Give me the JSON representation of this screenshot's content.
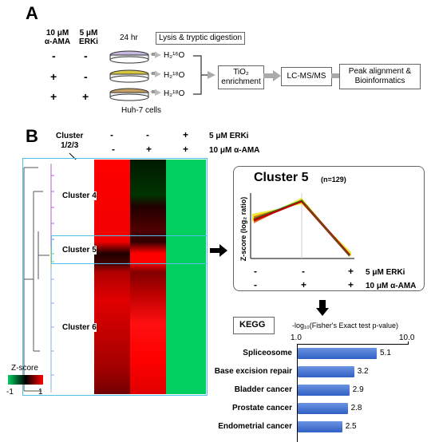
{
  "panel_a": {
    "letter": "A",
    "col1_header": [
      "10 μM",
      "α-AMA"
    ],
    "col2_header": [
      "5 μM",
      "ERKi"
    ],
    "rows": [
      {
        "ama": "-",
        "erki": "-",
        "water": "H₂¹⁶O"
      },
      {
        "ama": "+",
        "erki": "-",
        "water": "H₂¹⁸O"
      },
      {
        "ama": "+",
        "erki": "+",
        "water": "H₂¹⁸O"
      }
    ],
    "time_label": "24 hr",
    "cells_label": "Huh-7 cells",
    "lysis_label": "Lysis & tryptic digestion",
    "tio2_label": [
      "TiO₂",
      "enrichment"
    ],
    "lcms_label": "LC-MS/MS",
    "peak_label": [
      "Peak alignment &",
      "Bioinformatics"
    ]
  },
  "panel_b": {
    "letter": "B",
    "cluster_header": [
      "Cluster",
      "1/2/3"
    ],
    "erki_signs": [
      "-",
      "-",
      "+"
    ],
    "ama_signs": [
      "-",
      "+",
      "+"
    ],
    "erki_label": "5 μM ERKi",
    "ama_label": "10 μM α-AMA",
    "clusters": [
      "Cluster 4",
      "Cluster 5",
      "Cluster 6"
    ],
    "zscore_title": "Z-score",
    "zscore_min": "-1",
    "zscore_max": "1",
    "colors": {
      "green": "#00d060",
      "red": "#ff0000",
      "black": "#000000"
    }
  },
  "cluster5_panel": {
    "title": "Cluster 5",
    "n_label": "(n=129)",
    "ylabel": "Z-score (log₂ ratio)",
    "erki_signs": [
      "-",
      "-",
      "+"
    ],
    "ama_signs": [
      "-",
      "+",
      "+"
    ],
    "erki_label": "5 μM ERKi",
    "ama_label": "10 μM α-AMA"
  },
  "kegg": {
    "title": "KEGG",
    "axis_title": "-log₁₀(Fisher's Exact test p-value)",
    "tick_min": "1.0",
    "tick_max": "10.0"
  },
  "chart_data": {
    "type": "bar",
    "title": "KEGG",
    "xlabel": "-log₁₀(Fisher's Exact test p-value)",
    "scale": "log",
    "xlim": [
      1.0,
      10.0
    ],
    "categories": [
      "Spliceosome",
      "Base excision repair",
      "Bladder cancer",
      "Prostate cancer",
      "Endometrial cancer"
    ],
    "values": [
      5.1,
      3.2,
      2.9,
      2.8,
      2.5
    ],
    "value_labels": [
      "5.1",
      "3.2",
      "2.9",
      "2.8",
      "2.5"
    ]
  }
}
